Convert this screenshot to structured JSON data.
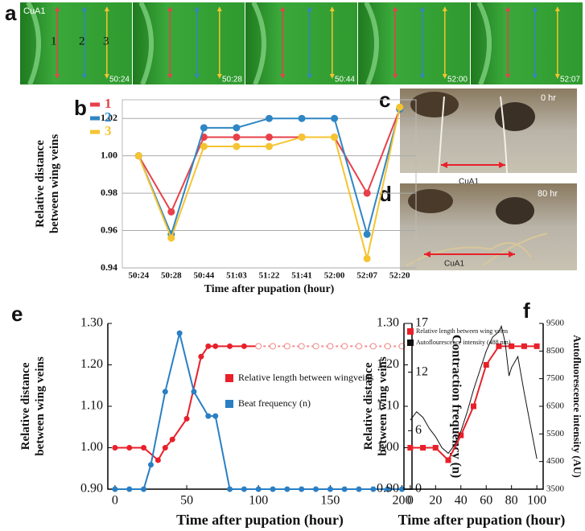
{
  "figure": {
    "panel_labels": [
      "a",
      "b",
      "c",
      "d",
      "e",
      "f"
    ],
    "a": {
      "vein_label": "CuA1",
      "track_labels": [
        "1",
        "2",
        "3"
      ],
      "timestamps": [
        "50:24",
        "50:28",
        "50:44",
        "52:00",
        "52:07"
      ]
    },
    "c": {
      "time": "0 hr",
      "vein_label": "CuA1"
    },
    "d": {
      "time": "80 hr",
      "vein_label": "CuA1"
    }
  },
  "chart_data": [
    {
      "type": "line",
      "xlabel": "Time after pupation (hour)",
      "ylabel": [
        "Relative distance",
        "between wing veins"
      ],
      "categories": [
        "50:24",
        "50:28",
        "50:44",
        "51:03",
        "51:22",
        "51:41",
        "52:00",
        "52:07",
        "52:20"
      ],
      "series": [
        {
          "name": "1",
          "color": "#e8404a",
          "values": [
            1.0,
            0.97,
            1.01,
            1.01,
            1.01,
            1.01,
            1.01,
            0.98,
            1.025
          ]
        },
        {
          "name": "2",
          "color": "#2f86c4",
          "values": [
            1.0,
            0.958,
            1.015,
            1.015,
            1.02,
            1.02,
            1.02,
            0.958,
            1.025
          ]
        },
        {
          "name": "3",
          "color": "#f5c431",
          "values": [
            1.0,
            0.956,
            1.005,
            1.005,
            1.005,
            1.01,
            1.01,
            0.945,
            1.026
          ]
        }
      ],
      "ylim": [
        0.94,
        1.03
      ],
      "yticks": [
        0.94,
        0.96,
        0.98,
        {
          "value": 1,
          "label": "1.00"
        },
        1.02
      ],
      "grid": true
    },
    {
      "type": "line",
      "xlabel": "Time after pupation (hour)",
      "ylabel": [
        "Relative distance",
        "between wing veins"
      ],
      "y2label": "Contraction frequency (n)",
      "series": [
        {
          "name": "Relative length between wingveins",
          "color": "#e8202a",
          "marker": "circle",
          "x": [
            0,
            10,
            20,
            30,
            35,
            40,
            50,
            60,
            65,
            70,
            80,
            90,
            100
          ],
          "values": [
            1.0,
            1.0,
            1.0,
            0.97,
            1.0,
            1.02,
            1.07,
            1.22,
            1.245,
            1.245,
            1.245,
            1.245,
            1.245
          ]
        },
        {
          "color": "#f08a8a",
          "marker": "hollow",
          "style": "dashed",
          "x": [
            100,
            110,
            120,
            130,
            140,
            150,
            160,
            170,
            180,
            190,
            200
          ],
          "values": [
            1.245,
            1.245,
            1.245,
            1.245,
            1.245,
            1.245,
            1.245,
            1.245,
            1.245,
            1.245,
            1.245
          ]
        },
        {
          "name": "Beat frequency (n)",
          "color": "#2a7fc4",
          "marker": "circle",
          "axis": "y2",
          "x": [
            0,
            10,
            20,
            25,
            35,
            45,
            55,
            65,
            70,
            80,
            90,
            100,
            110,
            120,
            130,
            140,
            150,
            160,
            170,
            180,
            190,
            200
          ],
          "values": [
            0,
            0,
            0,
            2.5,
            10,
            16,
            10,
            7.5,
            7.5,
            0,
            0,
            0,
            0,
            0,
            0,
            0,
            0,
            0,
            0,
            0,
            0,
            0
          ]
        }
      ],
      "xlim": [
        -5,
        207
      ],
      "xticks": [
        0,
        50,
        100,
        150,
        200
      ],
      "ylim": [
        0.9,
        1.3
      ],
      "yticks": [
        {
          "value": 0.9,
          "label": "0.90"
        },
        {
          "value": 1,
          "label": "1.00"
        },
        {
          "value": 1.1,
          "label": "1.10"
        },
        {
          "value": 1.2,
          "label": "1.20"
        },
        {
          "value": 1.3,
          "label": "1.30"
        }
      ],
      "y2lim": [
        0,
        17
      ],
      "y2ticks": [
        0,
        6,
        12,
        17
      ],
      "grid": false
    },
    {
      "type": "line",
      "xlabel": "Time after pupation (hour)",
      "ylabel": [
        "Relative distance",
        "between wing veins"
      ],
      "y2label": "Autofluorescence intensity (AU)",
      "series": [
        {
          "name": "Relative length between wing veins",
          "color": "#e8202a",
          "marker": "square",
          "x": [
            0,
            10,
            20,
            30,
            40,
            50,
            60,
            70,
            80,
            90,
            100
          ],
          "values": [
            1.0,
            1.0,
            1.0,
            0.97,
            1.03,
            1.1,
            1.2,
            1.245,
            1.245,
            1.245,
            1.245
          ]
        },
        {
          "name": "Autoflourescence intensity (488 nm)",
          "color": "#111111",
          "axis": "y2",
          "x": [
            0,
            5,
            10,
            15,
            20,
            25,
            30,
            35,
            40,
            45,
            50,
            55,
            60,
            65,
            70,
            72,
            75,
            78,
            80,
            85,
            90,
            95,
            100
          ],
          "values": [
            6000,
            6300,
            6100,
            5700,
            5400,
            5000,
            4800,
            5100,
            5600,
            6300,
            7100,
            7800,
            8500,
            9000,
            9200,
            9400,
            8800,
            7600,
            7900,
            8300,
            7000,
            5800,
            4600
          ]
        }
      ],
      "xlim": [
        -5,
        105
      ],
      "xticks": [
        0,
        20,
        40,
        60,
        80,
        100
      ],
      "ylim": [
        0.9,
        1.3
      ],
      "yticks": [
        {
          "value": 0.9,
          "label": "0.90"
        },
        {
          "value": 1,
          "label": "1.00"
        },
        {
          "value": 1.1,
          "label": "1.10"
        },
        {
          "value": 1.2,
          "label": "1.20"
        },
        {
          "value": 1.3,
          "label": "1.30"
        }
      ],
      "y2lim": [
        3500,
        9500
      ],
      "y2ticks": [
        3500,
        4500,
        5500,
        6500,
        7500,
        8500,
        9500
      ],
      "grid": false
    }
  ]
}
